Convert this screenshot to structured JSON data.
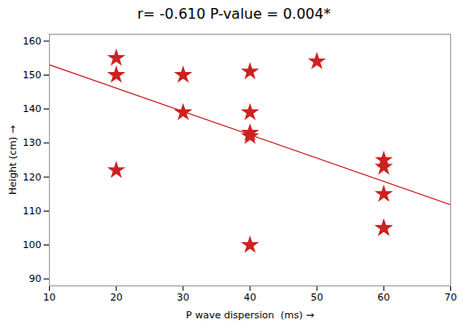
{
  "chart_data": {
    "type": "scatter",
    "title": "r= -0.610        P-value = 0.004*",
    "xlabel": "P wave dispersion  (ms)",
    "ylabel": "Height (cm)",
    "series": [
      {
        "type": "scatter",
        "marker": "star",
        "color": "#cc2222",
        "x": [
          20,
          20,
          20,
          30,
          30,
          40,
          40,
          40,
          40,
          40,
          50,
          60,
          60,
          60,
          60,
          60
        ],
        "values": [
          155,
          150,
          122,
          150,
          139,
          151,
          139,
          133,
          132,
          100,
          154,
          125,
          123,
          115,
          105,
          105
        ]
      },
      {
        "type": "line",
        "color": "#cc2222",
        "x": [
          10,
          70
        ],
        "values": [
          153.0036,
          111.8203
        ]
      }
    ],
    "xlim": [
      10,
      70
    ],
    "ylim": [
      88,
      162
    ],
    "xticks": [
      10,
      20,
      30,
      40,
      50,
      60,
      70
    ],
    "yticks": [
      90,
      100,
      110,
      120,
      130,
      140,
      150,
      160
    ],
    "grid": false
  }
}
